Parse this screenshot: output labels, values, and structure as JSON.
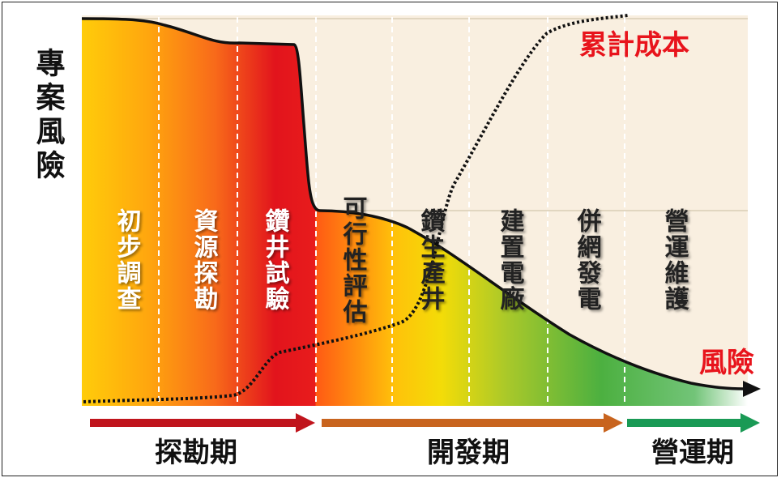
{
  "y_axis_label": "專案風險",
  "risk_label": "風險",
  "cost_label": "累計成本",
  "stages": [
    {
      "label": "初步調查"
    },
    {
      "label": "資源探勘"
    },
    {
      "label": "鑽井試驗"
    },
    {
      "label": "可行性評估"
    },
    {
      "label": "鑽生產井"
    },
    {
      "label": "建置電廠"
    },
    {
      "label": "併網發電"
    },
    {
      "label": "營運維護"
    }
  ],
  "phases": [
    {
      "label": "探勘期",
      "color": "#c0141c"
    },
    {
      "label": "開發期",
      "color": "#c8641e"
    },
    {
      "label": "營運期",
      "color": "#1a9a55"
    }
  ],
  "colors": {
    "plot_bg": "#f9efe0",
    "risk_line": "#111111",
    "cost_line": "#111111",
    "highlight_red": "#e8141c"
  }
}
